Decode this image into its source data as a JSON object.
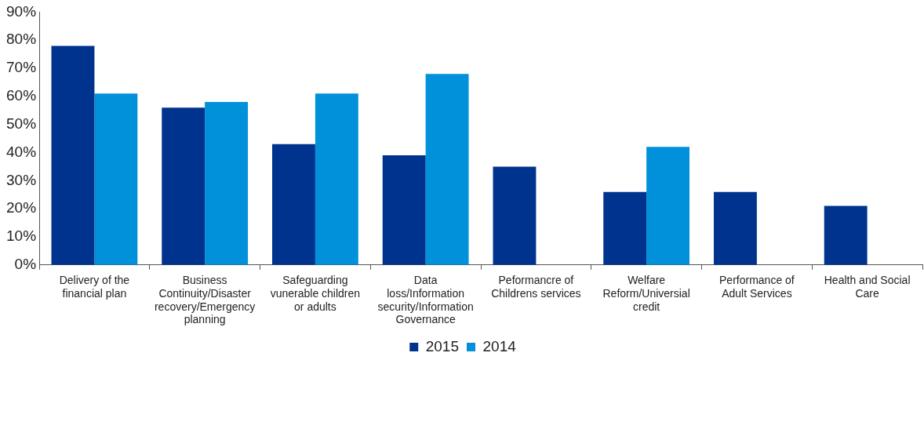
{
  "chart_data": {
    "type": "bar",
    "categories": [
      "Delivery of the financial plan",
      "Business Continuity/Disaster recovery/Emergency planning",
      "Safeguarding vunerable children or adults",
      "Data loss/Information security/Information Governance",
      "Peformancre of Childrens services",
      "Welfare Reform/Universial credit",
      "Performance of Adult Services",
      "Health and Social Care"
    ],
    "series": [
      {
        "name": "2015",
        "color": "#00338d",
        "values": [
          78,
          56,
          43,
          39,
          35,
          26,
          26,
          21
        ]
      },
      {
        "name": "2014",
        "color": "#0091da",
        "values": [
          61,
          58,
          61,
          68,
          null,
          42,
          null,
          null
        ]
      }
    ],
    "ylim": [
      0,
      90
    ],
    "yticks": [
      {
        "value": 0,
        "label": "0%"
      },
      {
        "value": 10,
        "label": "10%"
      },
      {
        "value": 20,
        "label": "20%"
      },
      {
        "value": 30,
        "label": "30%"
      },
      {
        "value": 40,
        "label": "40%"
      },
      {
        "value": 50,
        "label": "50%"
      },
      {
        "value": 60,
        "label": "60%"
      },
      {
        "value": 70,
        "label": "70%"
      },
      {
        "value": 80,
        "label": "80%"
      },
      {
        "value": 90,
        "label": "90%"
      }
    ],
    "grid": false,
    "legend": "bottom"
  }
}
